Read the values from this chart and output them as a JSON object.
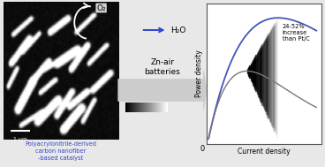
{
  "fig_width": 3.68,
  "fig_height": 1.89,
  "dpi": 100,
  "text_blue": "#3344cc",
  "text_label": "Polyacrylonitrile-derived\ncarbon nanofiber\n-based catalyst",
  "o2_label": "O₂",
  "h2o_label": "H₂O",
  "zn_air_label": "Zn-air\nbatteries",
  "scale_bar_label": "1 μm",
  "power_density_label": "Power density",
  "current_density_label": "Current density",
  "annotation_text": "24-52%\nincrease\nthan Pt/C",
  "curve_blue": "#4455bb",
  "curve_gray": "#777777",
  "zero_label": "0",
  "bg_color": "#e8e8e8"
}
